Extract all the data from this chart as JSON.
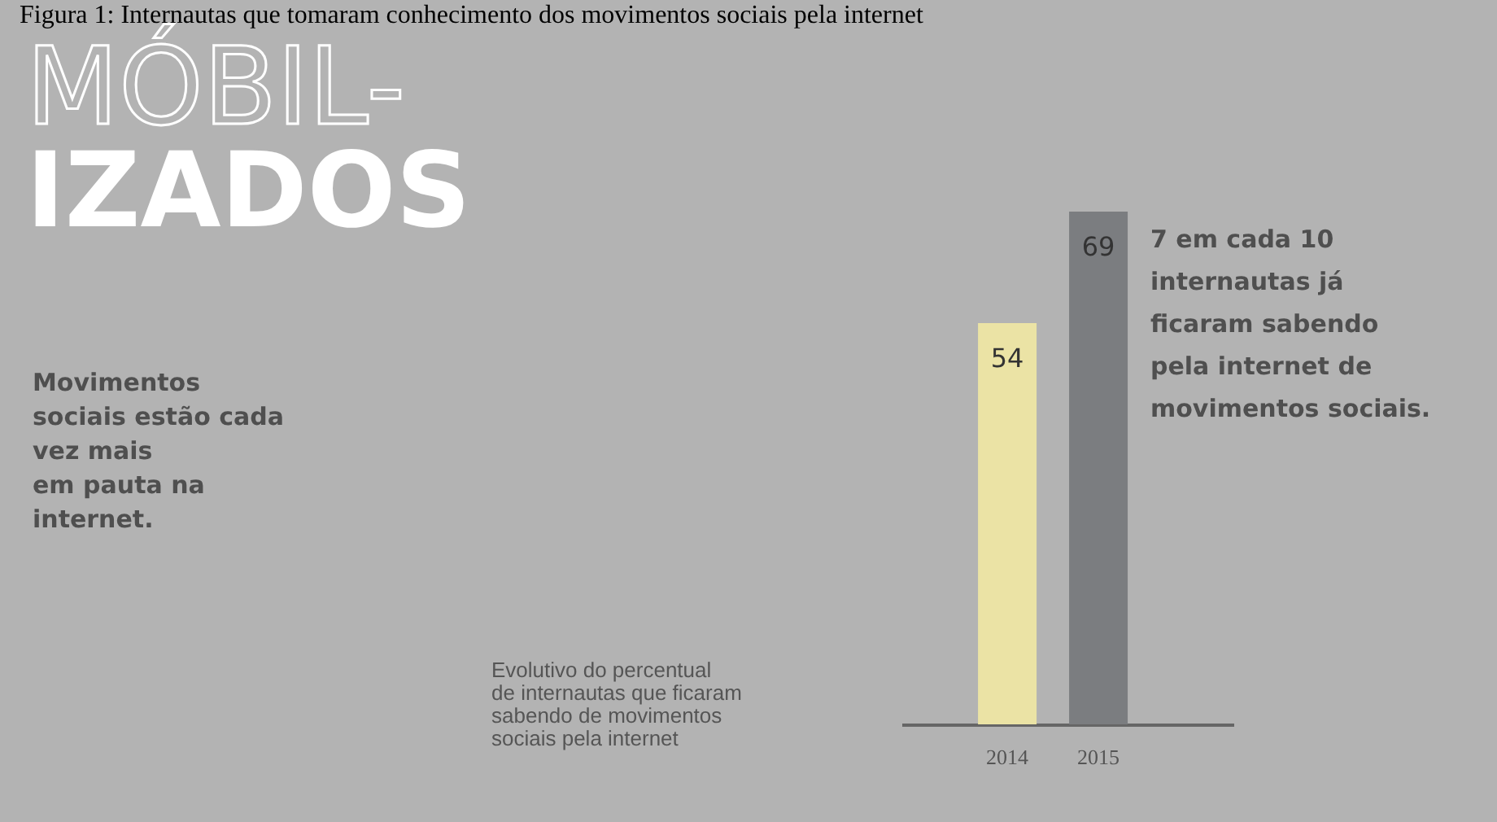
{
  "chart_data": {
    "type": "bar",
    "title": "MÓBIL-\nIZADOS",
    "subtitle": "Movimentos\nsociais estão cada\nvez mais\nem pauta na\ninternet.",
    "categories": [
      "2014",
      "2015"
    ],
    "series": [
      {
        "colors": [
          "#ebe3a5",
          "#7b7d80"
        ],
        "values": [
          54,
          69
        ]
      }
    ],
    "data_labels": true,
    "annotations": [
      "Figura 1: Internautas que tomaram conhecimento dos movimentos sociais pela internet",
      "7 em cada 10\ninternautas já\nficaram sabendo\npela internet de\nmovimentos sociais.",
      "Evolutivo do percentual\nde internautas que ficaram\nsabendo de movimentos\nsociais pela internet"
    ],
    "grid": false
  }
}
